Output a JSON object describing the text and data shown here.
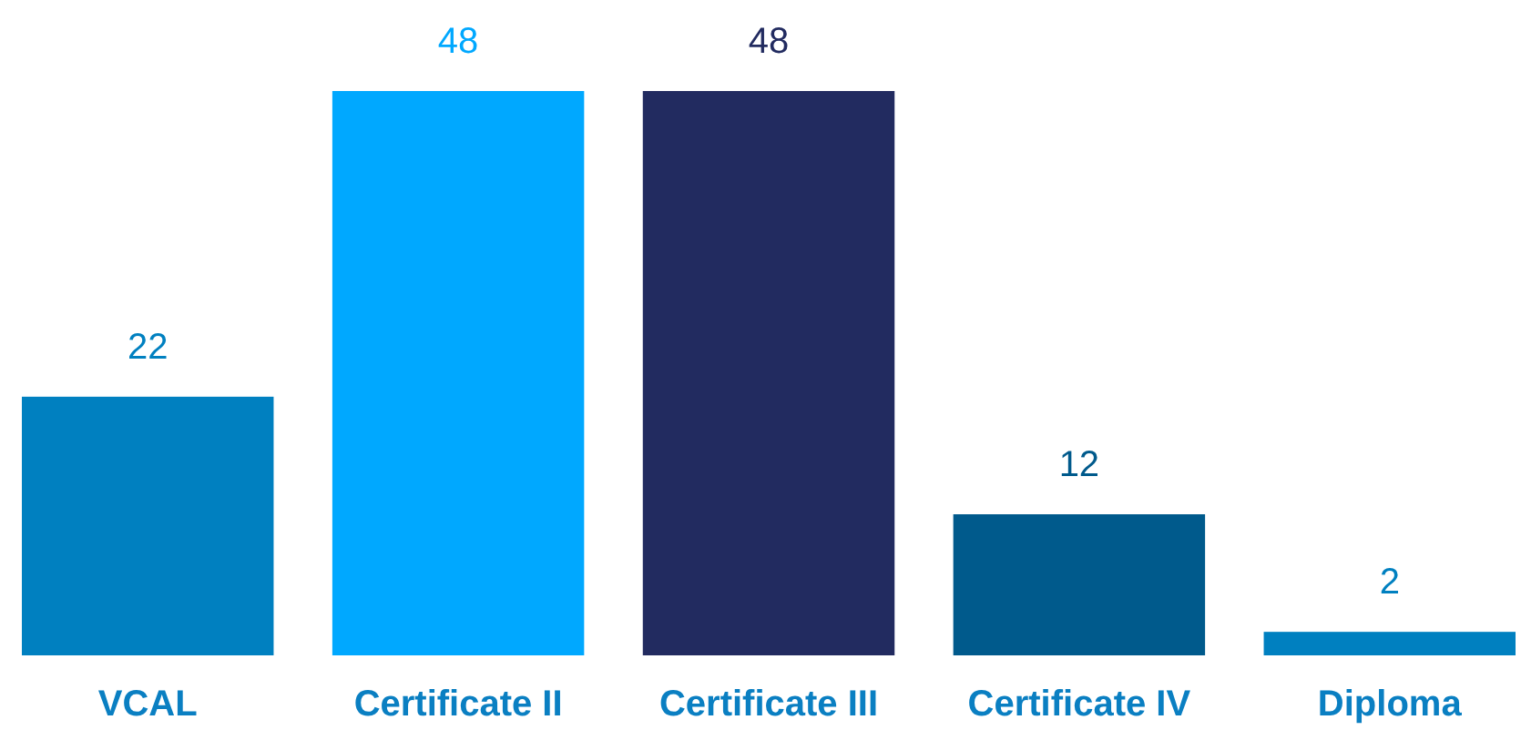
{
  "chart_data": {
    "type": "bar",
    "categories": [
      "VCAL",
      "Certificate II",
      "Certificate III",
      "Certificate IV",
      "Diploma"
    ],
    "values": [
      22,
      48,
      48,
      12,
      2
    ],
    "colors": [
      "#0080c0",
      "#00a8ff",
      "#222b60",
      "#005a8c",
      "#0080c0"
    ],
    "data_labels": true
  }
}
